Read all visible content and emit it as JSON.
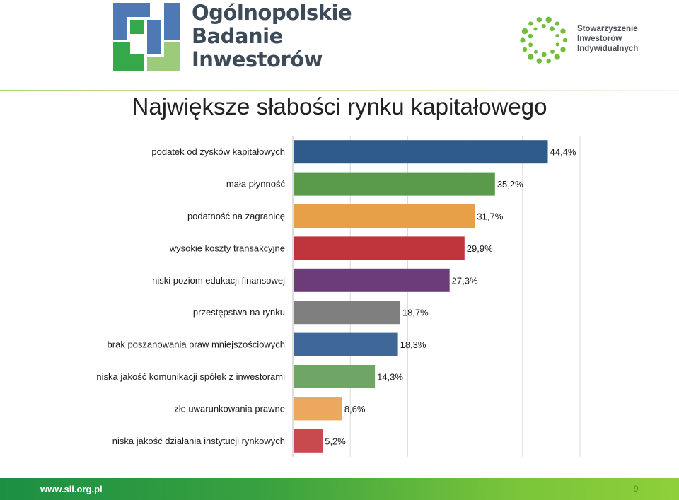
{
  "header": {
    "brand_line1": "Ogólnopolskie",
    "brand_line2": "Badanie",
    "brand_line3": "Inwestorów",
    "sii_line1": "Stowarzyszenie",
    "sii_line2": "Inwestorów",
    "sii_line3": "Indywidualnych"
  },
  "colors": {
    "logo_blue": "#4e79b4",
    "logo_green": "#35a84a",
    "logo_light_green": "#9ccc7a",
    "sii_green": "#6fbf3a"
  },
  "footer": {
    "url": "www.sii.org.pl",
    "page_number": "9"
  },
  "chart_data": {
    "type": "bar",
    "orientation": "horizontal",
    "title": "Największe słabości rynku kapitałowego",
    "categories": [
      "podatek od zysków kapitałowych",
      "mała płynność",
      "podatność na zagranicę",
      "wysokie koszty transakcyjne",
      "niski poziom edukacji finansowej",
      "przestępstwa na rynku",
      "brak poszanowania praw mniejszościowych",
      "niska jakość komunikacji spółek z inwestorami",
      "złe uwarunkowania prawne",
      "niska jakość działania instytucji rynkowych"
    ],
    "values": [
      44.4,
      35.2,
      31.7,
      29.9,
      27.3,
      18.7,
      18.3,
      14.3,
      8.6,
      5.2
    ],
    "value_labels": [
      "44,4%",
      "35,2%",
      "31,7%",
      "29,9%",
      "27,3%",
      "18,7%",
      "18,3%",
      "14,3%",
      "8,6%",
      "5,2%"
    ],
    "colors": [
      "#2e5a8c",
      "#5a9a4b",
      "#e8a048",
      "#c0343c",
      "#6b3c78",
      "#7f7f7f",
      "#3f6898",
      "#6fa665",
      "#eca85e",
      "#c84a4e"
    ],
    "xlim": [
      0,
      50
    ],
    "grid": true,
    "legend": "none",
    "xlabel": "",
    "ylabel": ""
  }
}
